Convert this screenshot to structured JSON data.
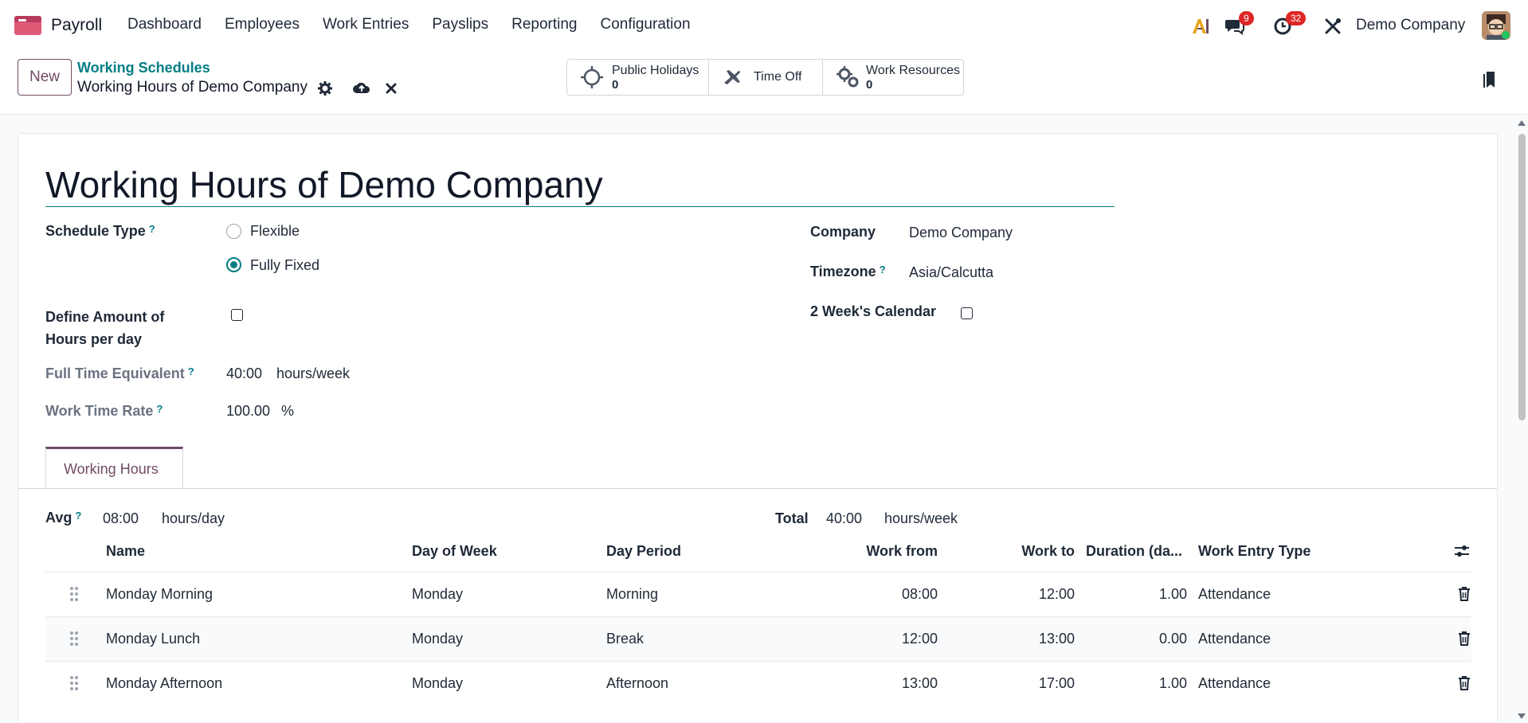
{
  "navbar": {
    "app_name": "Payroll",
    "menu": [
      "Dashboard",
      "Employees",
      "Work Entries",
      "Payslips",
      "Reporting",
      "Configuration"
    ],
    "messages_badge": "9",
    "activities_badge": "32",
    "company": "Demo Company",
    "brand_color": "#714b67",
    "accent_color": "#017e84"
  },
  "control": {
    "new_label": "New",
    "breadcrumb": "Working Schedules",
    "record_title": "Working Hours of Demo Company",
    "smart_buttons": [
      {
        "label": "Public Holidays",
        "value": "0",
        "icon": "sun-icon"
      },
      {
        "label": "Time Off",
        "value": "",
        "icon": "plane-icon"
      },
      {
        "label": "Work Resources",
        "value": "0",
        "icon": "gears-icon"
      }
    ]
  },
  "form": {
    "title": "Working Hours of Demo Company",
    "schedule_type_label": "Schedule Type",
    "schedule_type_options": [
      "Flexible",
      "Fully Fixed"
    ],
    "schedule_type_selected": "Fully Fixed",
    "define_hours_label": "Define Amount of Hours per day",
    "fte_label": "Full Time Equivalent",
    "fte_value": "40:00",
    "fte_unit": "hours/week",
    "work_time_rate_label": "Work Time Rate",
    "work_time_rate_value": "100.00",
    "work_time_rate_unit": "%",
    "company_label": "Company",
    "company_value": "Demo Company",
    "timezone_label": "Timezone",
    "timezone_value": "Asia/Calcutta",
    "two_week_label": "2 Week's Calendar"
  },
  "tabs": {
    "working_hours": "Working Hours"
  },
  "summary": {
    "avg_label": "Avg",
    "avg_value": "08:00",
    "avg_unit": "hours/day",
    "total_label": "Total",
    "total_value": "40:00",
    "total_unit": "hours/week"
  },
  "table": {
    "columns": [
      "Name",
      "Day of Week",
      "Day Period",
      "Work from",
      "Work to",
      "Duration (da...",
      "Work Entry Type"
    ],
    "rows": [
      {
        "name": "Monday Morning",
        "day": "Monday",
        "period": "Morning",
        "from": "08:00",
        "to": "12:00",
        "duration": "1.00",
        "type": "Attendance"
      },
      {
        "name": "Monday Lunch",
        "day": "Monday",
        "period": "Break",
        "from": "12:00",
        "to": "13:00",
        "duration": "0.00",
        "type": "Attendance"
      },
      {
        "name": "Monday Afternoon",
        "day": "Monday",
        "period": "Afternoon",
        "from": "13:00",
        "to": "17:00",
        "duration": "1.00",
        "type": "Attendance"
      }
    ]
  }
}
